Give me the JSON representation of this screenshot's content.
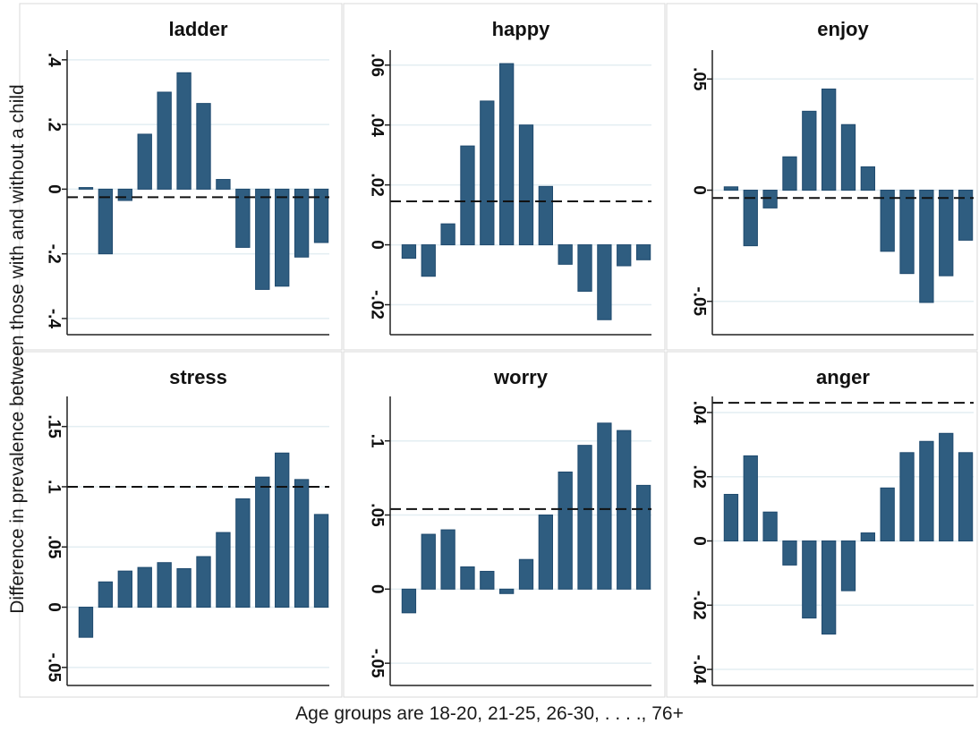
{
  "figure": {
    "ylabel": "Difference in prevalence between those with and without a child",
    "xlabel": "Age groups are 18-20, 21-25, 26-30, . . . ., 76+",
    "bar_color": "#2f5d80",
    "bar_edge_color": "#1f4a6e",
    "grid_color": "#e3eef2"
  },
  "chart_data": [
    {
      "type": "bar",
      "title": "ladder",
      "ylim": [
        -0.45,
        0.43
      ],
      "ticks": [
        {
          "v": 0.4,
          "label": ".4"
        },
        {
          "v": 0.2,
          "label": ".2"
        },
        {
          "v": 0,
          "label": "0"
        },
        {
          "v": -0.2,
          "label": "-.2"
        },
        {
          "v": -0.4,
          "label": "-.4"
        }
      ],
      "values": [
        0.005,
        -0.2,
        -0.035,
        0.17,
        0.3,
        0.36,
        0.265,
        0.03,
        -0.18,
        -0.31,
        -0.3,
        -0.21,
        -0.165
      ],
      "reference_line": -0.025
    },
    {
      "type": "bar",
      "title": "happy",
      "ylim": [
        -0.03,
        0.065
      ],
      "ticks": [
        {
          "v": 0.06,
          "label": ".06"
        },
        {
          "v": 0.04,
          "label": ".04"
        },
        {
          "v": 0.02,
          "label": ".02"
        },
        {
          "v": 0,
          "label": "0"
        },
        {
          "v": -0.02,
          "label": "-.02"
        }
      ],
      "values": [
        -0.0045,
        -0.0105,
        0.007,
        0.033,
        0.048,
        0.0605,
        0.04,
        0.0195,
        -0.0065,
        -0.0155,
        -0.025,
        -0.007,
        -0.005
      ],
      "reference_line": 0.0145
    },
    {
      "type": "bar",
      "title": "enjoy",
      "ylim": [
        -0.065,
        0.063
      ],
      "ticks": [
        {
          "v": 0.05,
          "label": ".05"
        },
        {
          "v": 0,
          "label": "0"
        },
        {
          "v": -0.05,
          "label": "-.05"
        }
      ],
      "values": [
        0.0015,
        -0.025,
        -0.008,
        0.015,
        0.0355,
        0.0455,
        0.0295,
        0.0105,
        -0.0275,
        -0.0375,
        -0.0505,
        -0.0385,
        -0.0225
      ],
      "reference_line": -0.0035
    },
    {
      "type": "bar",
      "title": "stress",
      "ylim": [
        -0.065,
        0.175
      ],
      "ticks": [
        {
          "v": 0.15,
          "label": ".15"
        },
        {
          "v": 0.1,
          "label": ".1"
        },
        {
          "v": 0.05,
          "label": ".05"
        },
        {
          "v": 0,
          "label": "0"
        },
        {
          "v": -0.05,
          "label": "-.05"
        }
      ],
      "values": [
        -0.025,
        0.021,
        0.03,
        0.033,
        0.037,
        0.032,
        0.042,
        0.062,
        0.09,
        0.108,
        0.128,
        0.106,
        0.077
      ],
      "reference_line": 0.1
    },
    {
      "type": "bar",
      "title": "worry",
      "ylim": [
        -0.065,
        0.13
      ],
      "ticks": [
        {
          "v": 0.1,
          "label": ".1"
        },
        {
          "v": 0.05,
          "label": ".05"
        },
        {
          "v": 0,
          "label": "0"
        },
        {
          "v": -0.05,
          "label": "-.05"
        }
      ],
      "values": [
        -0.016,
        0.037,
        0.04,
        0.015,
        0.012,
        -0.003,
        0.02,
        0.05,
        0.079,
        0.097,
        0.112,
        0.107,
        0.07
      ],
      "reference_line": 0.054
    },
    {
      "type": "bar",
      "title": "anger",
      "ylim": [
        -0.045,
        0.045
      ],
      "ticks": [
        {
          "v": 0.04,
          "label": ".04"
        },
        {
          "v": 0.02,
          "label": ".02"
        },
        {
          "v": 0,
          "label": "0"
        },
        {
          "v": -0.02,
          "label": "-.02"
        },
        {
          "v": -0.04,
          "label": "-.04"
        }
      ],
      "values": [
        0.0145,
        0.0265,
        0.009,
        -0.0075,
        -0.024,
        -0.029,
        -0.0155,
        0.0025,
        0.0165,
        0.0275,
        0.031,
        0.0335,
        0.0275
      ],
      "reference_line": 0.043
    }
  ]
}
